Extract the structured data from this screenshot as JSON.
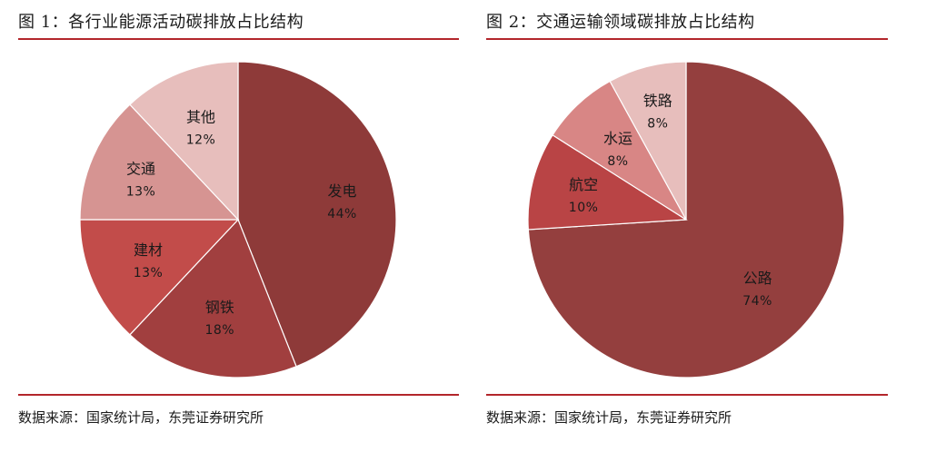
{
  "panels": [
    {
      "title": "图 1：各行业能源活动碳排放占比结构",
      "source": "数据来源：国家统计局，东莞证券研究所"
    },
    {
      "title": "图 2：交通运输领域碳排放占比结构",
      "source": "数据来源：国家统计局，东莞证券研究所"
    }
  ],
  "chart_data": [
    {
      "type": "pie",
      "title": "图 1：各行业能源活动碳排放占比结构",
      "start_angle_deg": 0,
      "direction": "clockwise",
      "slices": [
        {
          "label": "发电",
          "value": 44,
          "pct_label": "44%",
          "color": "#8e3a39"
        },
        {
          "label": "钢铁",
          "value": 18,
          "pct_label": "18%",
          "color": "#a13f3f"
        },
        {
          "label": "建材",
          "value": 13,
          "pct_label": "13%",
          "color": "#c24c4a"
        },
        {
          "label": "交通",
          "value": 13,
          "pct_label": "13%",
          "color": "#d69492"
        },
        {
          "label": "其他",
          "value": 12,
          "pct_label": "12%",
          "color": "#e7bebc"
        }
      ]
    },
    {
      "type": "pie",
      "title": "图 2：交通运输领域碳排放占比结构",
      "start_angle_deg": 0,
      "direction": "clockwise",
      "slices": [
        {
          "label": "公路",
          "value": 74,
          "pct_label": "74%",
          "color": "#943f3e"
        },
        {
          "label": "航空",
          "value": 10,
          "pct_label": "10%",
          "color": "#b94445"
        },
        {
          "label": "水运",
          "value": 8,
          "pct_label": "8%",
          "color": "#d88685"
        },
        {
          "label": "铁路",
          "value": 8,
          "pct_label": "8%",
          "color": "#e7bebc"
        }
      ]
    }
  ]
}
